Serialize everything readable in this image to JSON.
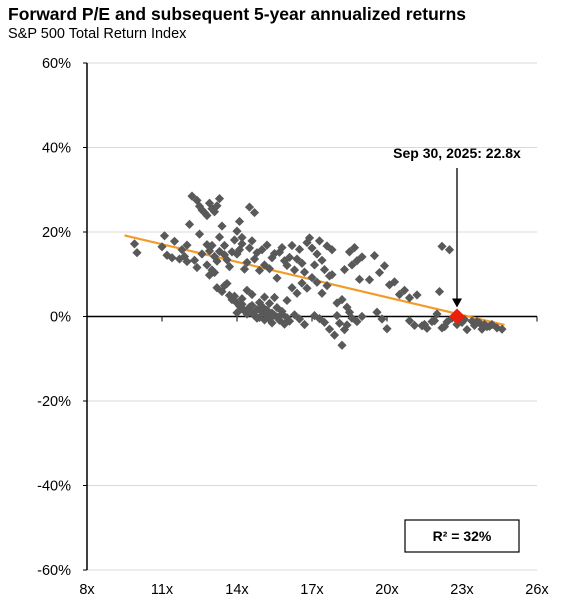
{
  "chart_data": {
    "type": "scatter",
    "title": "Forward P/E and subsequent 5-year annualized returns",
    "subtitle": "S&P 500 Total Return Index",
    "xlabel": "",
    "ylabel": "",
    "xlim": [
      8,
      26
    ],
    "ylim": [
      -60,
      60
    ],
    "x_ticks": [
      8,
      11,
      14,
      17,
      20,
      23,
      26
    ],
    "x_tick_labels": [
      "8x",
      "11x",
      "14x",
      "17x",
      "20x",
      "23x",
      "26x"
    ],
    "y_ticks": [
      60,
      40,
      20,
      0,
      -20,
      -40,
      -60
    ],
    "y_tick_labels": [
      "60%",
      "40%",
      "20%",
      "0%",
      "-20%",
      "-40%",
      "-60%"
    ],
    "grid": "horizontal",
    "marker_color": "#595959",
    "trend_color": "#F39B2A",
    "highlight_color": "#E8200C",
    "points": [
      [
        9.9,
        17.2
      ],
      [
        10.0,
        15.1
      ],
      [
        11.0,
        16.5
      ],
      [
        11.1,
        19.1
      ],
      [
        11.2,
        14.5
      ],
      [
        11.5,
        17.8
      ],
      [
        11.8,
        15.8
      ],
      [
        11.9,
        14.2
      ],
      [
        12.0,
        16.9
      ],
      [
        12.1,
        21.8
      ],
      [
        12.2,
        28.5
      ],
      [
        12.4,
        27.5
      ],
      [
        12.5,
        26.1
      ],
      [
        12.6,
        25.2
      ],
      [
        12.7,
        24.6
      ],
      [
        12.8,
        23.9
      ],
      [
        12.9,
        26.8
      ],
      [
        13.0,
        25.5
      ],
      [
        13.1,
        24.8
      ],
      [
        13.2,
        26.2
      ],
      [
        13.3,
        27.9
      ],
      [
        13.4,
        21.4
      ],
      [
        12.5,
        19.5
      ],
      [
        12.8,
        17.0
      ],
      [
        12.9,
        15.5
      ],
      [
        13.0,
        16.8
      ],
      [
        13.1,
        14.2
      ],
      [
        13.2,
        13.1
      ],
      [
        13.3,
        15.4
      ],
      [
        13.5,
        14.6
      ],
      [
        12.6,
        14.8
      ],
      [
        12.8,
        12.2
      ],
      [
        12.9,
        9.8
      ],
      [
        13.0,
        11.0
      ],
      [
        13.1,
        10.4
      ],
      [
        12.3,
        13.3
      ],
      [
        12.4,
        11.6
      ],
      [
        12.0,
        13.0
      ],
      [
        11.7,
        13.6
      ],
      [
        11.4,
        13.9
      ],
      [
        13.2,
        6.8
      ],
      [
        13.4,
        5.9
      ],
      [
        13.5,
        7.3
      ],
      [
        13.6,
        7.8
      ],
      [
        13.7,
        5.0
      ],
      [
        13.8,
        4.0
      ],
      [
        13.9,
        4.8
      ],
      [
        14.0,
        3.2
      ],
      [
        14.1,
        2.5
      ],
      [
        14.2,
        1.8
      ],
      [
        14.3,
        1.4
      ],
      [
        14.4,
        0.6
      ],
      [
        14.5,
        2.2
      ],
      [
        14.6,
        0.8
      ],
      [
        14.7,
        0.2
      ],
      [
        14.8,
        -0.4
      ],
      [
        14.9,
        -0.2
      ],
      [
        15.0,
        1.1
      ],
      [
        15.1,
        -0.8
      ],
      [
        15.2,
        0.4
      ],
      [
        15.3,
        -0.6
      ],
      [
        15.4,
        -1.5
      ],
      [
        15.5,
        0.3
      ],
      [
        15.6,
        -0.1
      ],
      [
        15.7,
        -0.9
      ],
      [
        15.8,
        0.6
      ],
      [
        15.9,
        -1.8
      ],
      [
        16.0,
        -0.3
      ],
      [
        16.1,
        -1.1
      ],
      [
        16.3,
        0.4
      ],
      [
        16.5,
        -0.6
      ],
      [
        16.7,
        -1.9
      ],
      [
        14.0,
        0.9
      ],
      [
        14.2,
        2.9
      ],
      [
        14.4,
        1.0
      ],
      [
        14.6,
        2.6
      ],
      [
        14.8,
        1.6
      ],
      [
        15.0,
        2.4
      ],
      [
        15.2,
        1.5
      ],
      [
        15.4,
        0.8
      ],
      [
        15.6,
        2.1
      ],
      [
        15.8,
        1.2
      ],
      [
        13.9,
        18.1
      ],
      [
        14.0,
        14.8
      ],
      [
        14.1,
        15.8
      ],
      [
        14.2,
        17.2
      ],
      [
        14.3,
        11.2
      ],
      [
        14.4,
        12.8
      ],
      [
        14.5,
        16.2
      ],
      [
        14.6,
        17.9
      ],
      [
        14.7,
        13.6
      ],
      [
        14.8,
        15.1
      ],
      [
        14.9,
        10.9
      ],
      [
        15.0,
        15.8
      ],
      [
        15.1,
        12.2
      ],
      [
        15.2,
        16.9
      ],
      [
        15.3,
        11.3
      ],
      [
        15.4,
        13.9
      ],
      [
        15.5,
        14.9
      ],
      [
        15.6,
        9.1
      ],
      [
        15.7,
        15.2
      ],
      [
        15.8,
        16.3
      ],
      [
        15.9,
        13.2
      ],
      [
        16.0,
        12.1
      ],
      [
        16.1,
        14.0
      ],
      [
        16.2,
        16.8
      ],
      [
        16.3,
        11.0
      ],
      [
        16.4,
        13.6
      ],
      [
        16.5,
        15.9
      ],
      [
        16.6,
        12.6
      ],
      [
        16.7,
        10.5
      ],
      [
        16.8,
        17.5
      ],
      [
        16.9,
        18.6
      ],
      [
        17.0,
        16.2
      ],
      [
        17.1,
        12.2
      ],
      [
        17.2,
        14.8
      ],
      [
        17.3,
        17.9
      ],
      [
        17.4,
        13.3
      ],
      [
        17.5,
        11.1
      ],
      [
        17.6,
        16.7
      ],
      [
        17.7,
        9.6
      ],
      [
        17.8,
        15.8
      ],
      [
        13.8,
        15.3
      ],
      [
        13.6,
        13.4
      ],
      [
        13.7,
        11.8
      ],
      [
        13.5,
        16.8
      ],
      [
        13.3,
        18.8
      ],
      [
        14.0,
        20.2
      ],
      [
        14.2,
        18.7
      ],
      [
        14.1,
        22.5
      ],
      [
        14.5,
        25.9
      ],
      [
        14.7,
        24.6
      ],
      [
        14.2,
        4.2
      ],
      [
        14.4,
        6.2
      ],
      [
        14.6,
        5.2
      ],
      [
        14.9,
        3.3
      ],
      [
        15.1,
        4.6
      ],
      [
        15.3,
        3.1
      ],
      [
        15.5,
        4.5
      ],
      [
        16.0,
        3.8
      ],
      [
        16.2,
        6.8
      ],
      [
        16.4,
        5.5
      ],
      [
        16.6,
        7.9
      ],
      [
        16.8,
        6.7
      ],
      [
        17.0,
        9.2
      ],
      [
        17.2,
        8.1
      ],
      [
        17.4,
        5.5
      ],
      [
        17.6,
        7.3
      ],
      [
        17.8,
        9.9
      ],
      [
        17.1,
        0.2
      ],
      [
        17.3,
        -0.5
      ],
      [
        17.5,
        -1.4
      ],
      [
        17.7,
        -3.0
      ],
      [
        17.9,
        -4.4
      ],
      [
        18.0,
        0.2
      ],
      [
        18.1,
        -1.6
      ],
      [
        18.2,
        -6.8
      ],
      [
        18.3,
        -3.1
      ],
      [
        18.4,
        -2.0
      ],
      [
        18.5,
        1.0
      ],
      [
        18.0,
        3.2
      ],
      [
        18.2,
        4.0
      ],
      [
        18.4,
        2.2
      ],
      [
        18.6,
        -0.4
      ],
      [
        18.8,
        -1.2
      ],
      [
        19.0,
        0.0
      ],
      [
        18.3,
        11.1
      ],
      [
        18.6,
        12.2
      ],
      [
        18.8,
        13.2
      ],
      [
        19.0,
        14.1
      ],
      [
        18.5,
        15.3
      ],
      [
        18.7,
        16.3
      ],
      [
        18.9,
        8.8
      ],
      [
        19.3,
        8.7
      ],
      [
        19.5,
        14.4
      ],
      [
        19.7,
        10.4
      ],
      [
        19.9,
        12.0
      ],
      [
        19.6,
        1.0
      ],
      [
        19.8,
        -0.6
      ],
      [
        20.0,
        -2.9
      ],
      [
        20.1,
        7.5
      ],
      [
        20.3,
        8.2
      ],
      [
        20.5,
        5.2
      ],
      [
        20.7,
        6.2
      ],
      [
        20.9,
        4.4
      ],
      [
        21.2,
        5.1
      ],
      [
        21.4,
        -2.2
      ],
      [
        20.9,
        -1.0
      ],
      [
        21.1,
        -2.1
      ],
      [
        21.6,
        -2.8
      ],
      [
        21.8,
        -1.2
      ],
      [
        22.0,
        0.6
      ],
      [
        22.1,
        5.9
      ],
      [
        22.2,
        16.6
      ],
      [
        22.5,
        15.8
      ],
      [
        22.6,
        -0.4
      ],
      [
        22.8,
        -1.9
      ],
      [
        22.2,
        -2.7
      ],
      [
        22.4,
        -1.3
      ],
      [
        23.0,
        -1.4
      ],
      [
        23.2,
        -3.1
      ],
      [
        23.4,
        -1.1
      ],
      [
        23.5,
        -2.1
      ],
      [
        23.7,
        -1.5
      ],
      [
        23.8,
        -3.0
      ],
      [
        24.0,
        -2.4
      ],
      [
        24.2,
        -1.9
      ],
      [
        24.4,
        -2.7
      ],
      [
        24.6,
        -3.0
      ],
      [
        23.1,
        -0.7
      ],
      [
        23.6,
        -1.2
      ],
      [
        23.9,
        -1.9
      ],
      [
        24.1,
        -2.3
      ],
      [
        21.5,
        -1.9
      ],
      [
        21.9,
        -1.0
      ],
      [
        22.3,
        -2.4
      ]
    ],
    "trendline": {
      "x": [
        9.5,
        24.7
      ],
      "y": [
        19.2,
        -2.0
      ]
    },
    "highlight": {
      "label": "Sep 30, 2025:  22.8x",
      "x": 22.8,
      "y": 0.0
    },
    "annotation": "R² = 32%"
  }
}
